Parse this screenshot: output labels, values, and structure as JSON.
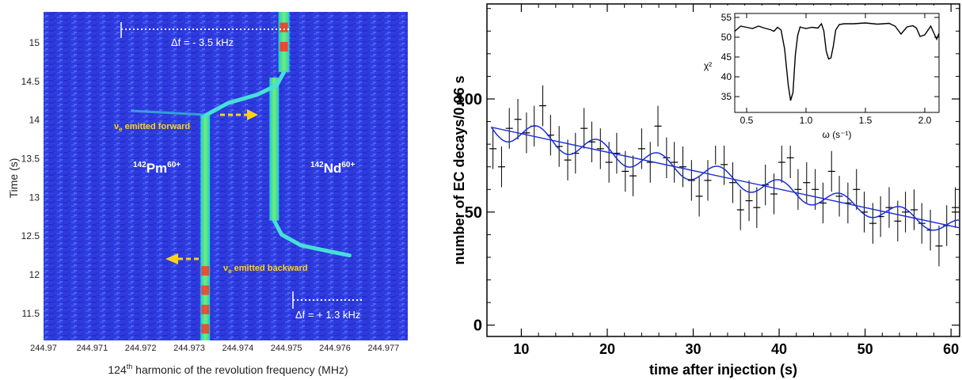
{
  "chart_data": [
    {
      "type": "heatmap",
      "description_free": true,
      "xlabel_main": "124",
      "xlabel_sup": "th",
      "xlabel_rest": " harmonic of the revolution frequency (MHz)",
      "ylabel": "Time (s)",
      "x_ticks": [
        "244.97",
        "244.971",
        "244.972",
        "244.973",
        "244.974",
        "244.975",
        "244.976",
        "244.977"
      ],
      "x_range": [
        244.97,
        244.9775
      ],
      "y_ticks": [
        "11.5",
        "12",
        "12.5",
        "13",
        "13.5",
        "14",
        "14.5",
        "15"
      ],
      "y_range": [
        11.15,
        15.4
      ],
      "annotations": {
        "delta_top": "Δf = - 3.5 kHz",
        "delta_bottom": "Δf = + 1.3 kHz",
        "nu_forward": "ν",
        "nu_forward_sub": "e",
        "nu_forward_rest": " emitted forward",
        "nu_backward": "ν",
        "nu_backward_sub": "e",
        "nu_backward_rest": " emitted backward",
        "pm_mass": "142",
        "pm_sym": "Pm",
        "pm_charge": "60+",
        "nd_mass": "142",
        "nd_sym": "Nd",
        "nd_charge": "60+"
      },
      "traces": {
        "pm_line": {
          "x": 244.97333,
          "t_from": 11.15,
          "t_to": 14.07
        },
        "nd_line_upper": {
          "x": 244.97495,
          "t_from": 14.62,
          "t_to": 15.4
        },
        "nd_line_lower": {
          "x": 244.97475,
          "t_from": 12.7,
          "t_to": 14.55
        },
        "nd_curve_top": {
          "points": [
            [
              244.9733,
              14.05
            ],
            [
              244.9738,
              14.22
            ],
            [
              244.9744,
              14.33
            ],
            [
              244.9748,
              14.45
            ],
            [
              244.97495,
              14.62
            ]
          ]
        },
        "nd_curve_bottom": {
          "points": [
            [
              244.97475,
              12.7
            ],
            [
              244.9749,
              12.52
            ],
            [
              244.9753,
              12.38
            ],
            [
              244.9759,
              12.3
            ],
            [
              244.9763,
              12.25
            ]
          ]
        }
      },
      "colors": {
        "background": "#2a36d6",
        "trace": "#28d8c8",
        "hot": "#ff3020"
      }
    },
    {
      "type": "scatter",
      "xlabel": "time after injection (s)",
      "ylabel": "number of EC decays/0.96 s",
      "xlim": [
        6,
        61
      ],
      "ylim": [
        -5,
        142
      ],
      "x_ticks": [
        "10",
        "20",
        "30",
        "40",
        "50",
        "60"
      ],
      "y_ticks": [
        "0",
        "50",
        "100"
      ],
      "x": [
        6.7,
        7.7,
        8.6,
        9.6,
        10.6,
        11.5,
        12.5,
        13.4,
        14.4,
        15.4,
        16.3,
        17.3,
        18.2,
        19.2,
        20.2,
        21.1,
        22.1,
        23.0,
        24.0,
        25.0,
        25.9,
        26.9,
        27.8,
        28.8,
        29.8,
        30.7,
        31.7,
        32.6,
        33.6,
        34.6,
        35.5,
        36.5,
        37.4,
        38.4,
        39.4,
        40.3,
        41.3,
        42.2,
        43.2,
        44.2,
        45.1,
        46.1,
        47.0,
        48.0,
        49.0,
        49.9,
        50.9,
        51.8,
        52.8,
        53.8,
        54.7,
        55.7,
        56.6,
        57.6,
        58.6,
        59.5,
        60.5
      ],
      "y": [
        78,
        70,
        87,
        91,
        85,
        88,
        97,
        84,
        79,
        73,
        76,
        87,
        81,
        78,
        72,
        76,
        68,
        66,
        78,
        72,
        88,
        74,
        72,
        70,
        64,
        57,
        64,
        80,
        71,
        63,
        51,
        55,
        52,
        62,
        58,
        72,
        74,
        60,
        63,
        60,
        54,
        68,
        57,
        54,
        60,
        50,
        45,
        48,
        52,
        46,
        50,
        51,
        45,
        42,
        35,
        44,
        52
      ],
      "yerr": 9,
      "fit_line": {
        "x": [
          6.5,
          61
        ],
        "y": [
          87.5,
          43
        ]
      },
      "fit_oscillation": {
        "omega": 0.89,
        "amplitude": 5.0,
        "phase": 0.0
      },
      "series_colors": {
        "data": "#000000",
        "fit": "#1a2dd6"
      },
      "inset": {
        "type": "line",
        "xlabel": "ω (s⁻¹)",
        "ylabel": "χ²",
        "xlim": [
          0.4,
          2.12
        ],
        "ylim": [
          31,
          56
        ],
        "x_ticks": [
          "0.5",
          "1.0",
          "1.5",
          "2.0"
        ],
        "y_ticks": [
          "35",
          "40",
          "45",
          "50",
          "55"
        ],
        "x": [
          0.4,
          0.45,
          0.5,
          0.55,
          0.6,
          0.65,
          0.7,
          0.73,
          0.76,
          0.79,
          0.82,
          0.85,
          0.87,
          0.89,
          0.91,
          0.93,
          0.95,
          0.97,
          1.0,
          1.05,
          1.1,
          1.13,
          1.15,
          1.17,
          1.19,
          1.21,
          1.23,
          1.25,
          1.28,
          1.32,
          1.4,
          1.5,
          1.6,
          1.7,
          1.75,
          1.8,
          1.85,
          1.9,
          1.93,
          1.96,
          2.0,
          2.05,
          2.1,
          2.12
        ],
        "y": [
          51.5,
          52.8,
          52.5,
          52.2,
          52.8,
          52.3,
          51.9,
          51.5,
          52.5,
          51.8,
          47.0,
          38.0,
          34.0,
          36.0,
          45.5,
          50.5,
          52.6,
          52.4,
          52.2,
          52.5,
          52.3,
          53.4,
          51.6,
          46.5,
          44.5,
          44.8,
          47.8,
          51.8,
          53.2,
          53.4,
          53.4,
          53.6,
          53.3,
          53.5,
          52.8,
          50.8,
          52.6,
          52.9,
          52.3,
          50.2,
          50.6,
          52.8,
          49.5,
          51.0
        ],
        "series_color": "#000000"
      }
    }
  ]
}
